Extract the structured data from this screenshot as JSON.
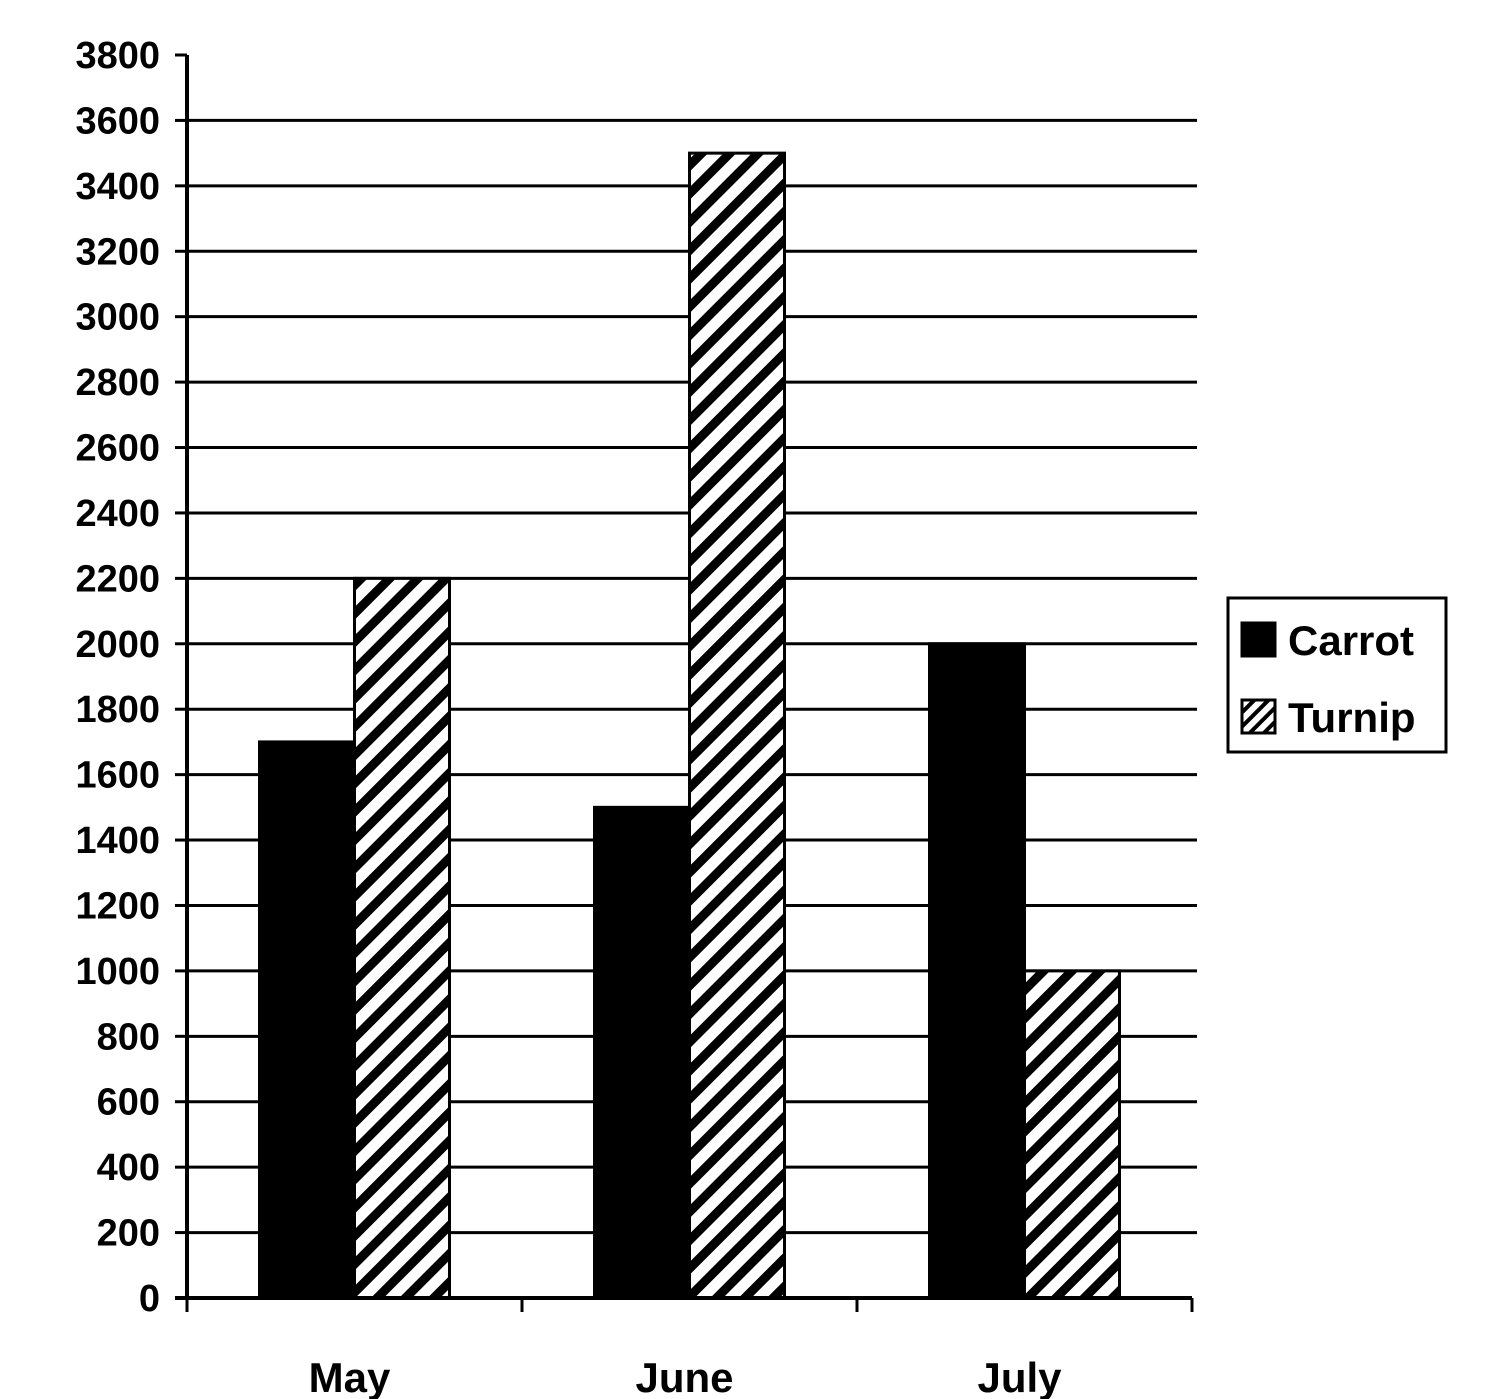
{
  "chart_data": {
    "type": "bar",
    "categories": [
      "May",
      "June",
      "July"
    ],
    "series": [
      {
        "name": "Carrot",
        "values": [
          1700,
          1500,
          2000
        ],
        "pattern": "solid-dark",
        "color": "#000000"
      },
      {
        "name": "Turnip",
        "values": [
          2200,
          3500,
          1000
        ],
        "pattern": "diagonal-hatch",
        "color": "#000000"
      }
    ],
    "title": "",
    "xlabel": "",
    "ylabel": "",
    "ylim": [
      0,
      3800
    ],
    "yticks": [
      0,
      200,
      400,
      600,
      800,
      1000,
      1200,
      1400,
      1600,
      1800,
      2000,
      2200,
      2400,
      2600,
      2800,
      3000,
      3200,
      3400,
      3600,
      3800
    ],
    "grid": true,
    "legend_position": "right"
  }
}
